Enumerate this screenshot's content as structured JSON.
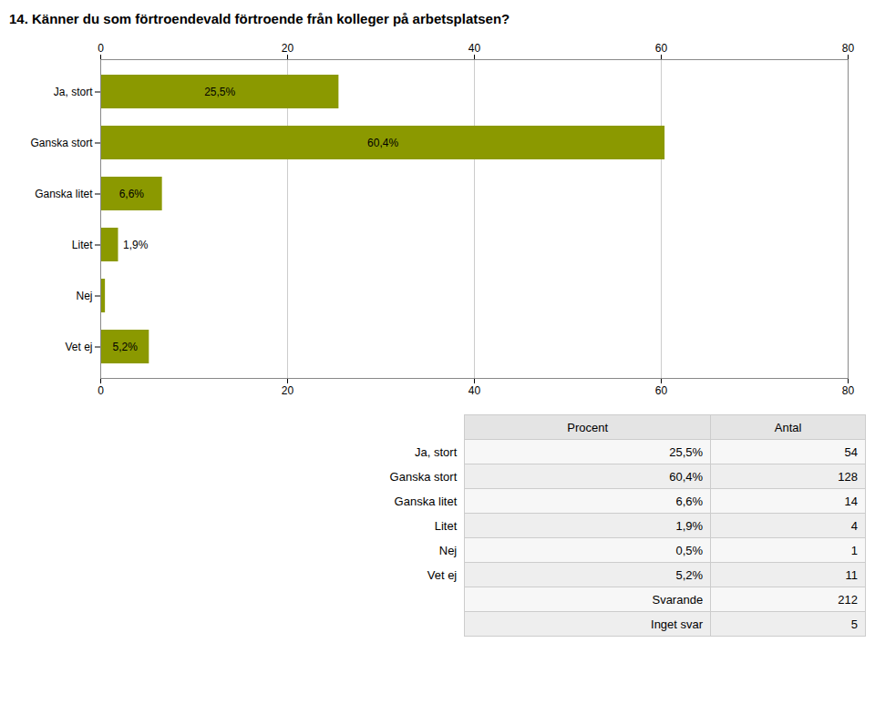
{
  "chart_data": {
    "type": "bar",
    "orientation": "horizontal",
    "title": "14. Känner du som förtroendevald förtroende från kolleger på arbetsplatsen?",
    "categories": [
      "Ja, stort",
      "Ganska stort",
      "Ganska litet",
      "Litet",
      "Nej",
      "Vet ej"
    ],
    "values": [
      25.5,
      60.4,
      6.6,
      1.9,
      0.5,
      5.2
    ],
    "value_labels": [
      "25,5%",
      "60,4%",
      "6,6%",
      "1,9%",
      null,
      "5,2%"
    ],
    "data_labels": true,
    "color": "#8B9900",
    "xlim": [
      0,
      80
    ],
    "xticks": [
      0,
      20,
      40,
      60,
      80
    ],
    "grid": true,
    "table": {
      "columns": [
        "Procent",
        "Antal"
      ],
      "rows": [
        [
          "Ja, stort",
          "25,5%",
          54
        ],
        [
          "Ganska stort",
          "60,4%",
          128
        ],
        [
          "Ganska litet",
          "6,6%",
          14
        ],
        [
          "Litet",
          "1,9%",
          4
        ],
        [
          "Nej",
          "0,5%",
          1
        ],
        [
          "Vet ej",
          "5,2%",
          11
        ],
        [
          null,
          "Svarande",
          212
        ],
        [
          null,
          "Inget svar",
          5
        ]
      ]
    }
  }
}
